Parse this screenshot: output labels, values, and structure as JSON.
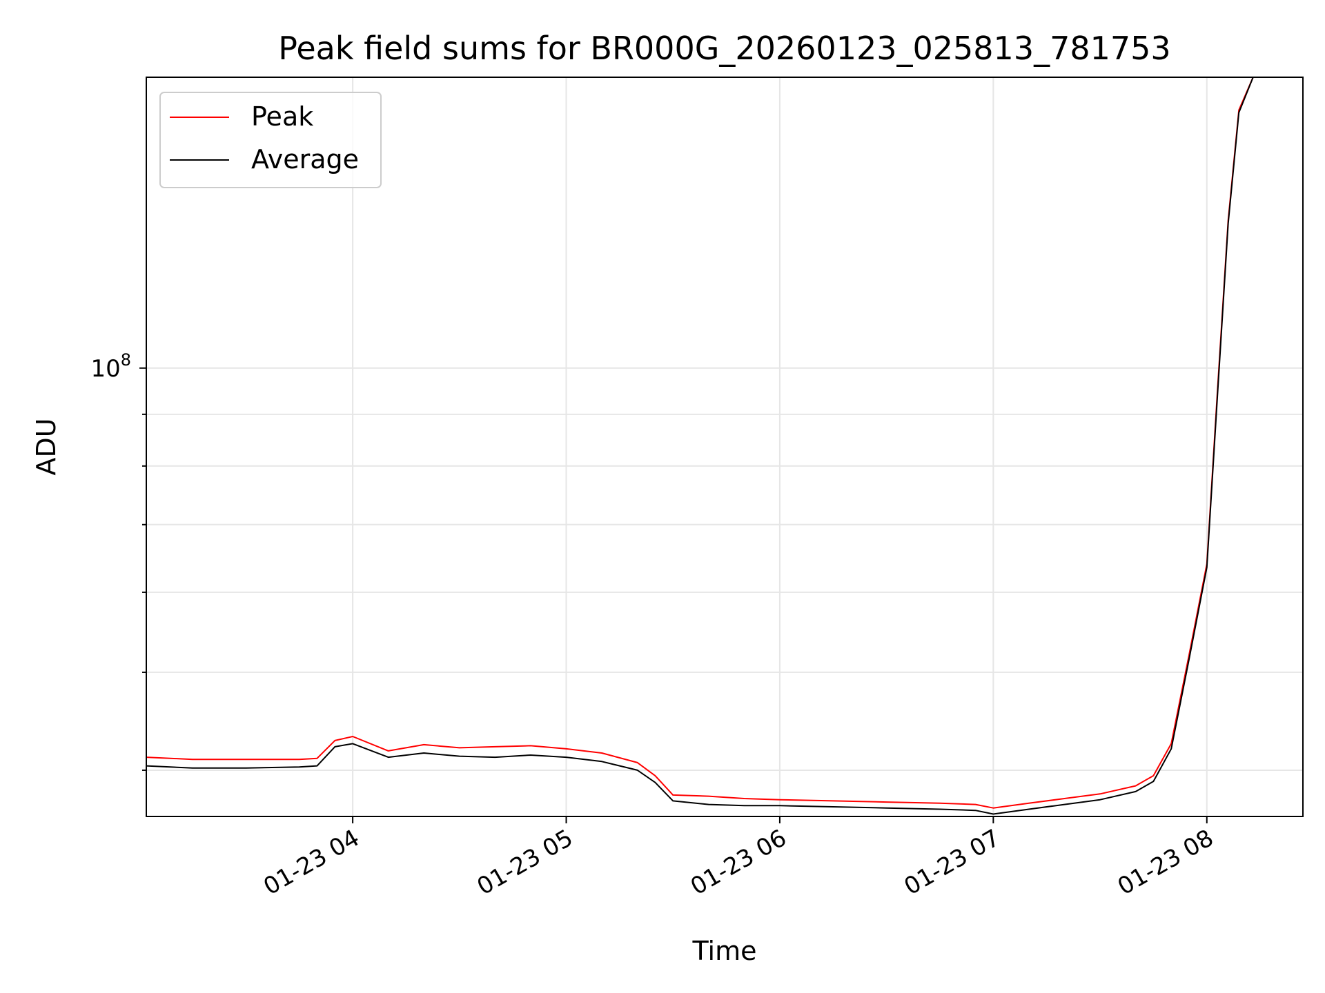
{
  "chart_data": {
    "type": "line",
    "title": "Peak field sums for BR000G_20260123_025813_781753",
    "xlabel": "Time",
    "ylabel": "ADU",
    "y_scale": "log",
    "grid": true,
    "legend_position": "top-left",
    "xlim": [
      "01-23 03:02",
      "01-23 08:27"
    ],
    "ylim": [
      36000000,
      194000000
    ],
    "x_ticks": [
      {
        "value": "01-23 04:00",
        "label": "01-23 04"
      },
      {
        "value": "01-23 05:00",
        "label": "01-23 05"
      },
      {
        "value": "01-23 06:00",
        "label": "01-23 06"
      },
      {
        "value": "01-23 07:00",
        "label": "01-23 07"
      },
      {
        "value": "01-23 08:00",
        "label": "01-23 08"
      }
    ],
    "y_major_ticks": [
      {
        "value": 100000000,
        "label": "10",
        "exponent": "8"
      }
    ],
    "y_minor_ticks": [
      40000000,
      50000000,
      60000000,
      70000000,
      80000000,
      90000000,
      200000000
    ],
    "series": [
      {
        "name": "Peak",
        "color": "#ff0000",
        "points": [
          [
            "01-23 03:02",
            41200000
          ],
          [
            "01-23 03:15",
            41000000
          ],
          [
            "01-23 03:30",
            41000000
          ],
          [
            "01-23 03:45",
            41000000
          ],
          [
            "01-23 03:50",
            41100000
          ],
          [
            "01-23 03:55",
            42800000
          ],
          [
            "01-23 04:00",
            43200000
          ],
          [
            "01-23 04:10",
            41800000
          ],
          [
            "01-23 04:20",
            42400000
          ],
          [
            "01-23 04:30",
            42100000
          ],
          [
            "01-23 04:40",
            42200000
          ],
          [
            "01-23 04:50",
            42300000
          ],
          [
            "01-23 05:00",
            42000000
          ],
          [
            "01-23 05:10",
            41600000
          ],
          [
            "01-23 05:20",
            40700000
          ],
          [
            "01-23 05:25",
            39500000
          ],
          [
            "01-23 05:30",
            37800000
          ],
          [
            "01-23 05:40",
            37700000
          ],
          [
            "01-23 05:50",
            37500000
          ],
          [
            "01-23 06:00",
            37400000
          ],
          [
            "01-23 06:15",
            37300000
          ],
          [
            "01-23 06:30",
            37200000
          ],
          [
            "01-23 06:45",
            37100000
          ],
          [
            "01-23 06:55",
            37000000
          ],
          [
            "01-23 07:00",
            36700000
          ],
          [
            "01-23 07:10",
            37100000
          ],
          [
            "01-23 07:20",
            37500000
          ],
          [
            "01-23 07:30",
            37900000
          ],
          [
            "01-23 07:40",
            38600000
          ],
          [
            "01-23 07:45",
            39500000
          ],
          [
            "01-23 07:50",
            42500000
          ],
          [
            "01-23 07:55",
            52000000
          ],
          [
            "01-23 08:00",
            64000000
          ],
          [
            "01-23 08:03",
            95000000
          ],
          [
            "01-23 08:06",
            140000000
          ],
          [
            "01-23 08:09",
            180000000
          ],
          [
            "01-23 08:13",
            194000000
          ]
        ]
      },
      {
        "name": "Average",
        "color": "#000000",
        "points": [
          [
            "01-23 03:02",
            40400000
          ],
          [
            "01-23 03:15",
            40200000
          ],
          [
            "01-23 03:30",
            40200000
          ],
          [
            "01-23 03:45",
            40300000
          ],
          [
            "01-23 03:50",
            40400000
          ],
          [
            "01-23 03:55",
            42200000
          ],
          [
            "01-23 04:00",
            42500000
          ],
          [
            "01-23 04:10",
            41200000
          ],
          [
            "01-23 04:20",
            41600000
          ],
          [
            "01-23 04:30",
            41300000
          ],
          [
            "01-23 04:40",
            41200000
          ],
          [
            "01-23 04:50",
            41400000
          ],
          [
            "01-23 05:00",
            41200000
          ],
          [
            "01-23 05:10",
            40800000
          ],
          [
            "01-23 05:20",
            40000000
          ],
          [
            "01-23 05:25",
            38900000
          ],
          [
            "01-23 05:30",
            37300000
          ],
          [
            "01-23 05:40",
            37000000
          ],
          [
            "01-23 05:50",
            36900000
          ],
          [
            "01-23 06:00",
            36900000
          ],
          [
            "01-23 06:15",
            36800000
          ],
          [
            "01-23 06:30",
            36700000
          ],
          [
            "01-23 06:45",
            36600000
          ],
          [
            "01-23 06:55",
            36500000
          ],
          [
            "01-23 07:00",
            36200000
          ],
          [
            "01-23 07:10",
            36600000
          ],
          [
            "01-23 07:20",
            37000000
          ],
          [
            "01-23 07:30",
            37400000
          ],
          [
            "01-23 07:40",
            38100000
          ],
          [
            "01-23 07:45",
            39000000
          ],
          [
            "01-23 07:50",
            42000000
          ],
          [
            "01-23 07:55",
            51500000
          ],
          [
            "01-23 08:00",
            63500000
          ],
          [
            "01-23 08:03",
            94000000
          ],
          [
            "01-23 08:06",
            139000000
          ],
          [
            "01-23 08:09",
            179000000
          ],
          [
            "01-23 08:13",
            194000000
          ]
        ]
      }
    ]
  }
}
